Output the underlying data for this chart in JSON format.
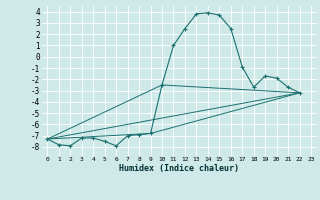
{
  "title": "",
  "xlabel": "Humidex (Indice chaleur)",
  "ylabel": "",
  "background_color": "#cfe8e8",
  "grid_color": "#ffffff",
  "line_color": "#1a7070",
  "x_min": -0.5,
  "x_max": 23.5,
  "y_min": -8.8,
  "y_max": 4.5,
  "x_ticks": [
    0,
    1,
    2,
    3,
    4,
    5,
    6,
    7,
    8,
    9,
    10,
    11,
    12,
    13,
    14,
    15,
    16,
    17,
    18,
    19,
    20,
    21,
    22,
    23
  ],
  "y_ticks": [
    -8,
    -7,
    -6,
    -5,
    -4,
    -3,
    -2,
    -1,
    0,
    1,
    2,
    3,
    4
  ],
  "series": [
    [
      0,
      -7.3
    ],
    [
      1,
      -7.8
    ],
    [
      2,
      -7.9
    ],
    [
      3,
      -7.2
    ],
    [
      4,
      -7.2
    ],
    [
      5,
      -7.5
    ],
    [
      6,
      -7.9
    ],
    [
      7,
      -7.0
    ],
    [
      8,
      -6.9
    ],
    [
      9,
      -6.8
    ],
    [
      10,
      -2.5
    ],
    [
      11,
      1.0
    ],
    [
      12,
      2.5
    ],
    [
      13,
      3.8
    ],
    [
      14,
      3.9
    ],
    [
      15,
      3.7
    ],
    [
      16,
      2.5
    ],
    [
      17,
      -0.9
    ],
    [
      18,
      -2.7
    ],
    [
      19,
      -1.7
    ],
    [
      20,
      -1.9
    ],
    [
      21,
      -2.7
    ],
    [
      22,
      -3.2
    ]
  ],
  "line2": [
    [
      0,
      -7.3
    ],
    [
      22,
      -3.2
    ]
  ],
  "line3": [
    [
      0,
      -7.3
    ],
    [
      9,
      -6.8
    ],
    [
      22,
      -3.2
    ]
  ],
  "line4": [
    [
      0,
      -7.3
    ],
    [
      10,
      -2.5
    ],
    [
      22,
      -3.2
    ]
  ]
}
